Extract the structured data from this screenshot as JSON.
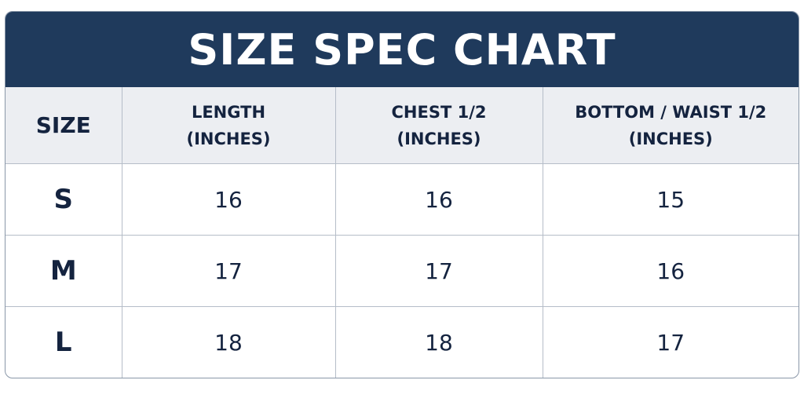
{
  "title": "SIZE SPEC CHART",
  "colors": {
    "header_bg": "#1f3a5c",
    "header_text": "#ffffff",
    "column_header_bg": "#eceef2",
    "text": "#14233f",
    "grid": "#b5bdc8"
  },
  "columns": [
    {
      "line1": "SIZE",
      "line2": ""
    },
    {
      "line1": "LENGTH",
      "line2": "(INCHES)"
    },
    {
      "line1": "CHEST 1/2",
      "line2": "(INCHES)"
    },
    {
      "line1": "BOTTOM / WAIST 1/2",
      "line2": "(INCHES)"
    }
  ],
  "rows": [
    {
      "size": "S",
      "length": "16",
      "chest": "16",
      "bottom": "15"
    },
    {
      "size": "M",
      "length": "17",
      "chest": "17",
      "bottom": "16"
    },
    {
      "size": "L",
      "length": "18",
      "chest": "18",
      "bottom": "17"
    }
  ]
}
